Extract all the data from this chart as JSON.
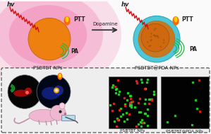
{
  "arrow_text": "Dopamine",
  "label_left": "PSBTBT NPs",
  "label_right": "PSBTBT@PDA NPs",
  "label_bottom_left": "PSBTBT NPs",
  "label_bottom_right": "PSBTBT@PDA NPs",
  "ptt_text": "PTT",
  "pa_text": "PA",
  "hv_text": "hv",
  "dash_box_color": "#555555",
  "orange_ball_color": "#e8780a",
  "teal_shell_color": "#4ec8d8",
  "pink_glow_color": "#f090b8",
  "green_wave_color": "#28c050",
  "red_laser_color": "#cc1818",
  "bg_color": "#f0f0f0",
  "top_bg": "#fafafa"
}
